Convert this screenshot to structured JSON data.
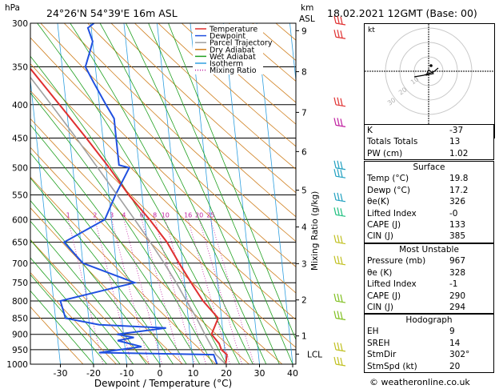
{
  "header": {
    "location": "24°26'N  54°39'E  16m  ASL",
    "datetime": "18.02.2021  12GMT  (Base: 00)",
    "y_unit_left": "hPa",
    "y_unit_right_km": "km",
    "y_unit_right_asl": "ASL",
    "mixing_ratio_label": "Mixing Ratio (g/kg)",
    "lcl_label": "LCL"
  },
  "chart_data": {
    "type": "line",
    "title": "24°26'N  54°39'E  16m  ASL",
    "xlabel": "Dewpoint / Temperature (°C)",
    "ylabel": "hPa",
    "x_ticks": [
      -30,
      -20,
      -10,
      0,
      10,
      20,
      30,
      40
    ],
    "xlim": [
      -40,
      40
    ],
    "pressure_ticks": [
      300,
      350,
      400,
      450,
      500,
      550,
      600,
      650,
      700,
      750,
      800,
      850,
      900,
      950,
      1000
    ],
    "ylim": [
      1000,
      300
    ],
    "log_pressure_axis": true,
    "km_ticks": [
      {
        "label": "1",
        "p": 905
      },
      {
        "label": "2",
        "p": 797
      },
      {
        "label": "3",
        "p": 701
      },
      {
        "label": "4",
        "p": 616
      },
      {
        "label": "5",
        "p": 541
      },
      {
        "label": "6",
        "p": 472
      },
      {
        "label": "7",
        "p": 411
      },
      {
        "label": "8",
        "p": 356
      },
      {
        "label": "9",
        "p": 308
      }
    ],
    "lcl_p": 965,
    "mixing_ratio_labels": [
      "1",
      "2",
      "3",
      "4",
      "6",
      "8",
      "10",
      "16",
      "20",
      "25"
    ],
    "legend": [
      {
        "name": "Temperature",
        "color": "#e03030"
      },
      {
        "name": "Dewpoint",
        "color": "#2050e0"
      },
      {
        "name": "Parcel Trajectory",
        "color": "#a0a0a0"
      },
      {
        "name": "Dry Adiabat",
        "color": "#d08020"
      },
      {
        "name": "Wet Adiabat",
        "color": "#20a020"
      },
      {
        "name": "Isotherm",
        "color": "#30a0e0"
      },
      {
        "name": "Mixing Ratio",
        "color": "#c020a0"
      }
    ],
    "legend_position": "top-right",
    "series": [
      {
        "name": "Temperature",
        "color": "#e03030",
        "points": [
          [
            1000,
            19.8
          ],
          [
            967,
            20.5
          ],
          [
            950,
            19
          ],
          [
            930,
            18.5
          ],
          [
            900,
            16.5
          ],
          [
            850,
            19
          ],
          [
            800,
            15
          ],
          [
            750,
            12
          ],
          [
            700,
            9
          ],
          [
            650,
            6
          ],
          [
            600,
            1.5
          ],
          [
            550,
            -4
          ],
          [
            500,
            -9
          ],
          [
            450,
            -15
          ],
          [
            400,
            -22
          ],
          [
            350,
            -30
          ],
          [
            300,
            -38
          ]
        ]
      },
      {
        "name": "Dewpoint",
        "color": "#2050e0",
        "points": [
          [
            1000,
            17.2
          ],
          [
            967,
            16.5
          ],
          [
            960,
            -18
          ],
          [
            940,
            -5
          ],
          [
            920,
            -12
          ],
          [
            910,
            -7
          ],
          [
            900,
            -12
          ],
          [
            880,
            3
          ],
          [
            870,
            -17
          ],
          [
            850,
            -27
          ],
          [
            800,
            -28
          ],
          [
            750,
            -5
          ],
          [
            700,
            -20
          ],
          [
            650,
            -25
          ],
          [
            600,
            -12
          ],
          [
            550,
            -8
          ],
          [
            500,
            -3
          ],
          [
            495,
            -6
          ],
          [
            450,
            -6
          ],
          [
            420,
            -6
          ],
          [
            400,
            -8
          ],
          [
            370,
            -11
          ],
          [
            350,
            -13
          ],
          [
            330,
            -11
          ],
          [
            320,
            -10
          ],
          [
            305,
            -11
          ],
          [
            300,
            -9
          ]
        ]
      },
      {
        "name": "Parcel Trajectory",
        "color": "#a0a0a0",
        "points": [
          [
            1000,
            19.8
          ],
          [
            967,
            17.2
          ],
          [
            900,
            14.5
          ],
          [
            850,
            12.5
          ],
          [
            800,
            10
          ],
          [
            750,
            7.5
          ],
          [
            700,
            4.5
          ],
          [
            650,
            1
          ],
          [
            600,
            -3
          ],
          [
            550,
            -7.5
          ],
          [
            500,
            -12.5
          ],
          [
            450,
            -18
          ],
          [
            400,
            -24.5
          ],
          [
            350,
            -32
          ],
          [
            300,
            -41
          ]
        ]
      }
    ]
  },
  "hodograph": {
    "unit_label": "kt",
    "ring_labels": [
      "10",
      "20",
      "30"
    ]
  },
  "indices": [
    {
      "label": "K",
      "value": "-37"
    },
    {
      "label": "Totals Totals",
      "value": "13"
    },
    {
      "label": "PW (cm)",
      "value": "1.02"
    }
  ],
  "surface": {
    "title": "Surface",
    "rows": [
      {
        "label": "Temp (°C)",
        "value": "19.8"
      },
      {
        "label": "Dewp (°C)",
        "value": "17.2"
      },
      {
        "label": "θe(K)",
        "value": "326"
      },
      {
        "label": "Lifted Index",
        "value": "-0"
      },
      {
        "label": "CAPE (J)",
        "value": "133"
      },
      {
        "label": "CIN (J)",
        "value": "385"
      }
    ]
  },
  "most_unstable": {
    "title": "Most Unstable",
    "rows": [
      {
        "label": "Pressure (mb)",
        "value": "967"
      },
      {
        "label": "θe (K)",
        "value": "328"
      },
      {
        "label": "Lifted Index",
        "value": "-1"
      },
      {
        "label": "CAPE (J)",
        "value": "290"
      },
      {
        "label": "CIN (J)",
        "value": "294"
      }
    ]
  },
  "hodograph_table": {
    "title": "Hodograph",
    "rows": [
      {
        "label": "EH",
        "value": "9"
      },
      {
        "label": "SREH",
        "value": "14"
      },
      {
        "label": "StmDir",
        "value": "302°"
      },
      {
        "label": "StmSpd (kt)",
        "value": "20"
      }
    ]
  },
  "footer": {
    "credit": "© weatheronline.co.uk"
  }
}
